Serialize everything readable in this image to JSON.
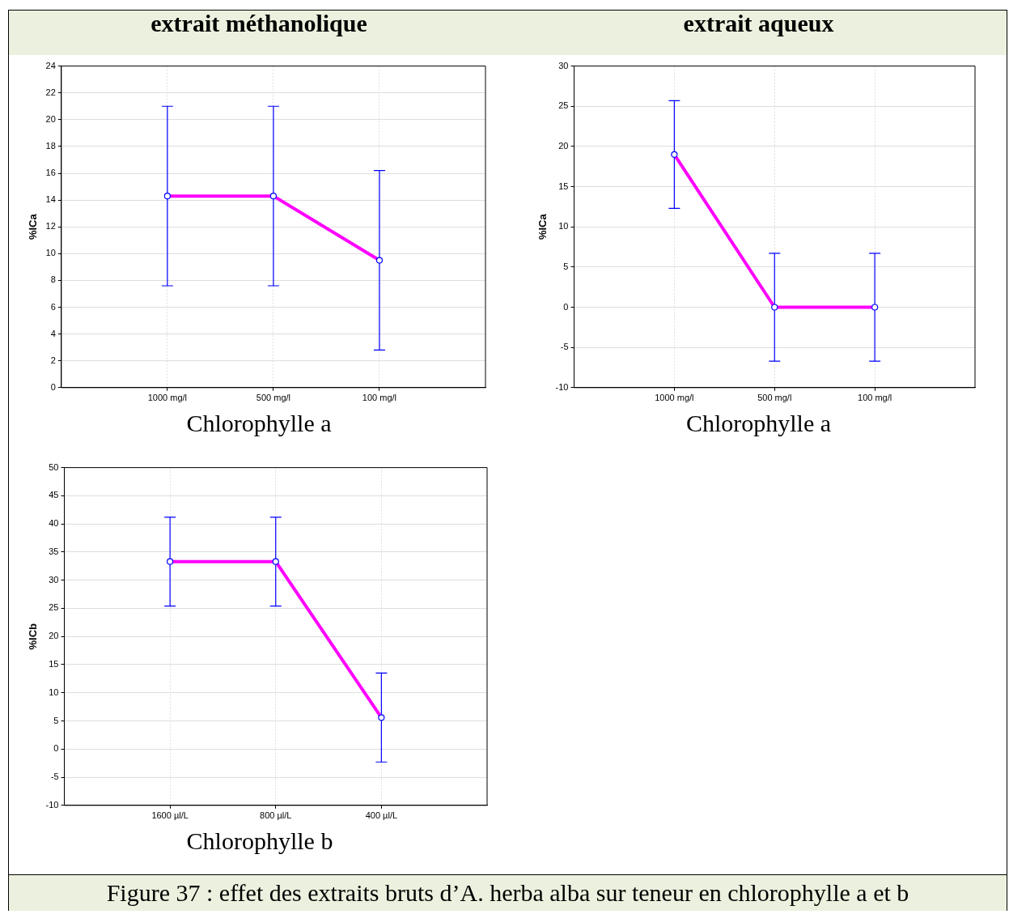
{
  "chart_data": [
    {
      "type": "line",
      "title": "extrait méthanolique",
      "xlabel": "Chlorophylle a",
      "ylabel": "%ICa",
      "categories": [
        "1000 mg/l",
        "500 mg/l",
        "100 mg/l"
      ],
      "series": [
        {
          "color": "#ff00ff",
          "values": [
            14.3,
            14.3,
            9.5
          ],
          "errors": [
            6.7,
            6.7,
            6.7
          ]
        }
      ],
      "ylim": [
        0,
        24
      ],
      "yticks": [
        0,
        2,
        4,
        6,
        8,
        10,
        12,
        14,
        16,
        18,
        20,
        22,
        24
      ],
      "grid": true,
      "legend": false,
      "marker": "circle",
      "line_style": "solid"
    },
    {
      "type": "line",
      "title": "extrait aqueux",
      "xlabel": "Chlorophylle a",
      "ylabel": "%ICa",
      "categories": [
        "1000 mg/l",
        "500 mg/l",
        "100 mg/l"
      ],
      "series": [
        {
          "color": "#ff00ff",
          "values": [
            19,
            0,
            0
          ],
          "errors": [
            6.7,
            6.7,
            6.7
          ]
        }
      ],
      "ylim": [
        -10,
        30
      ],
      "yticks": [
        -10,
        -5,
        0,
        5,
        10,
        15,
        20,
        25,
        30
      ],
      "grid": true,
      "legend": false,
      "marker": "circle",
      "line_style": "solid"
    },
    {
      "type": "line",
      "xlabel": "Chlorophylle b",
      "ylabel": "%ICb",
      "categories": [
        "1600 µl/L",
        "800 µl/L",
        "400 µl/L"
      ],
      "series": [
        {
          "color": "#ff00ff",
          "values": [
            33.3,
            33.3,
            5.6
          ],
          "errors": [
            7.9,
            7.9,
            7.9
          ]
        }
      ],
      "ylim": [
        -10,
        50
      ],
      "yticks": [
        -10,
        -5,
        0,
        5,
        10,
        15,
        20,
        25,
        30,
        35,
        40,
        45,
        50
      ],
      "grid": true,
      "legend": false,
      "marker": "circle",
      "line_style": "solid",
      "annotations": [
        "Figure 37 : effet des extraits bruts d’A. herba alba sur teneur en chlorophylle a et b"
      ]
    }
  ]
}
